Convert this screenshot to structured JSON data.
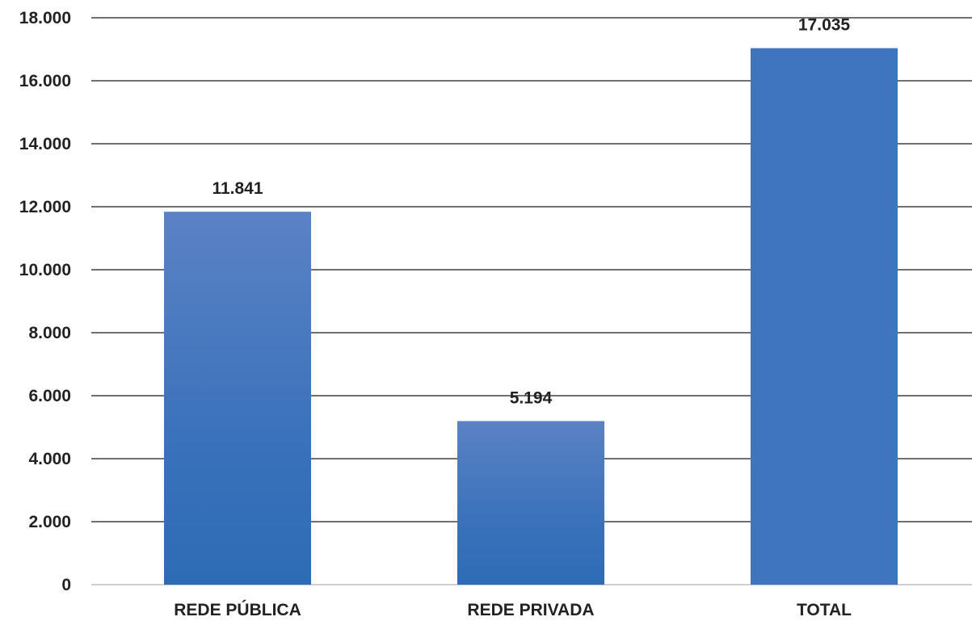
{
  "chart_data": {
    "type": "bar",
    "categories": [
      "REDE PÚBLICA",
      "REDE PRIVADA",
      "TOTAL"
    ],
    "values": [
      11841,
      5194,
      17035
    ],
    "data_labels": [
      "11.841",
      "5.194",
      "17.035"
    ],
    "ylim": [
      0,
      18000
    ],
    "y_ticks": [
      0,
      2000,
      4000,
      6000,
      8000,
      10000,
      12000,
      14000,
      16000,
      18000
    ],
    "y_tick_labels": [
      "0",
      "2.000",
      "4.000",
      "6.000",
      "8.000",
      "10.000",
      "12.000",
      "14.000",
      "16.000",
      "18.000"
    ],
    "grid": true,
    "legend": "none",
    "colors": {
      "bar": "#3f74be",
      "bar_top_gradient": "#5b82c4",
      "bar_bottom_gradient": "#2e6bb6",
      "grid": "#1a1a1a",
      "axis": "#bfbfbf"
    }
  }
}
